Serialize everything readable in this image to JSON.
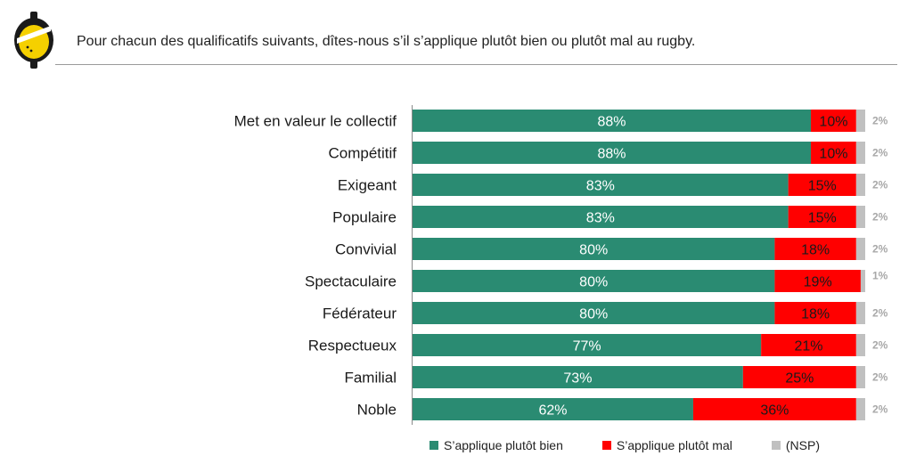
{
  "header": {
    "question": "Pour chacun des qualificatifs suivants, dîtes-nous s’il s’applique plutôt bien ou plutôt mal au rugby."
  },
  "colors": {
    "bien": "#2a8b72",
    "mal": "#ff0000",
    "nsp": "#c0c0c0",
    "logo_yellow": "#f5d000",
    "logo_dark": "#1a1a1a"
  },
  "chart_data": {
    "type": "bar",
    "orientation": "horizontal",
    "stacked": true,
    "categories": [
      "Met en valeur le collectif",
      "Compétitif",
      "Exigeant",
      "Populaire",
      "Convivial",
      "Spectaculaire",
      "Fédérateur",
      "Respectueux",
      "Familial",
      "Noble"
    ],
    "series": [
      {
        "name": "S’applique plutôt bien",
        "values": [
          88,
          88,
          83,
          83,
          80,
          80,
          80,
          77,
          73,
          62
        ],
        "labels": [
          "88%",
          "88%",
          "83%",
          "83%",
          "80%",
          "80%",
          "80%",
          "77%",
          "73%",
          "62%"
        ]
      },
      {
        "name": "S’applique plutôt mal",
        "values": [
          10,
          10,
          15,
          15,
          18,
          19,
          18,
          21,
          25,
          36
        ],
        "labels": [
          "10%",
          "10%",
          "15%",
          "15%",
          "18%",
          "19%",
          "18%",
          "21%",
          "25%",
          "36%"
        ]
      },
      {
        "name": "(NSP)",
        "values": [
          2,
          2,
          2,
          2,
          2,
          1,
          2,
          2,
          2,
          2
        ],
        "labels": [
          "2%",
          "2%",
          "2%",
          "2%",
          "2%",
          "1%",
          "2%",
          "2%",
          "2%",
          "2%"
        ]
      }
    ],
    "xlim": [
      0,
      100
    ],
    "grid": false,
    "legend": "bottom"
  }
}
